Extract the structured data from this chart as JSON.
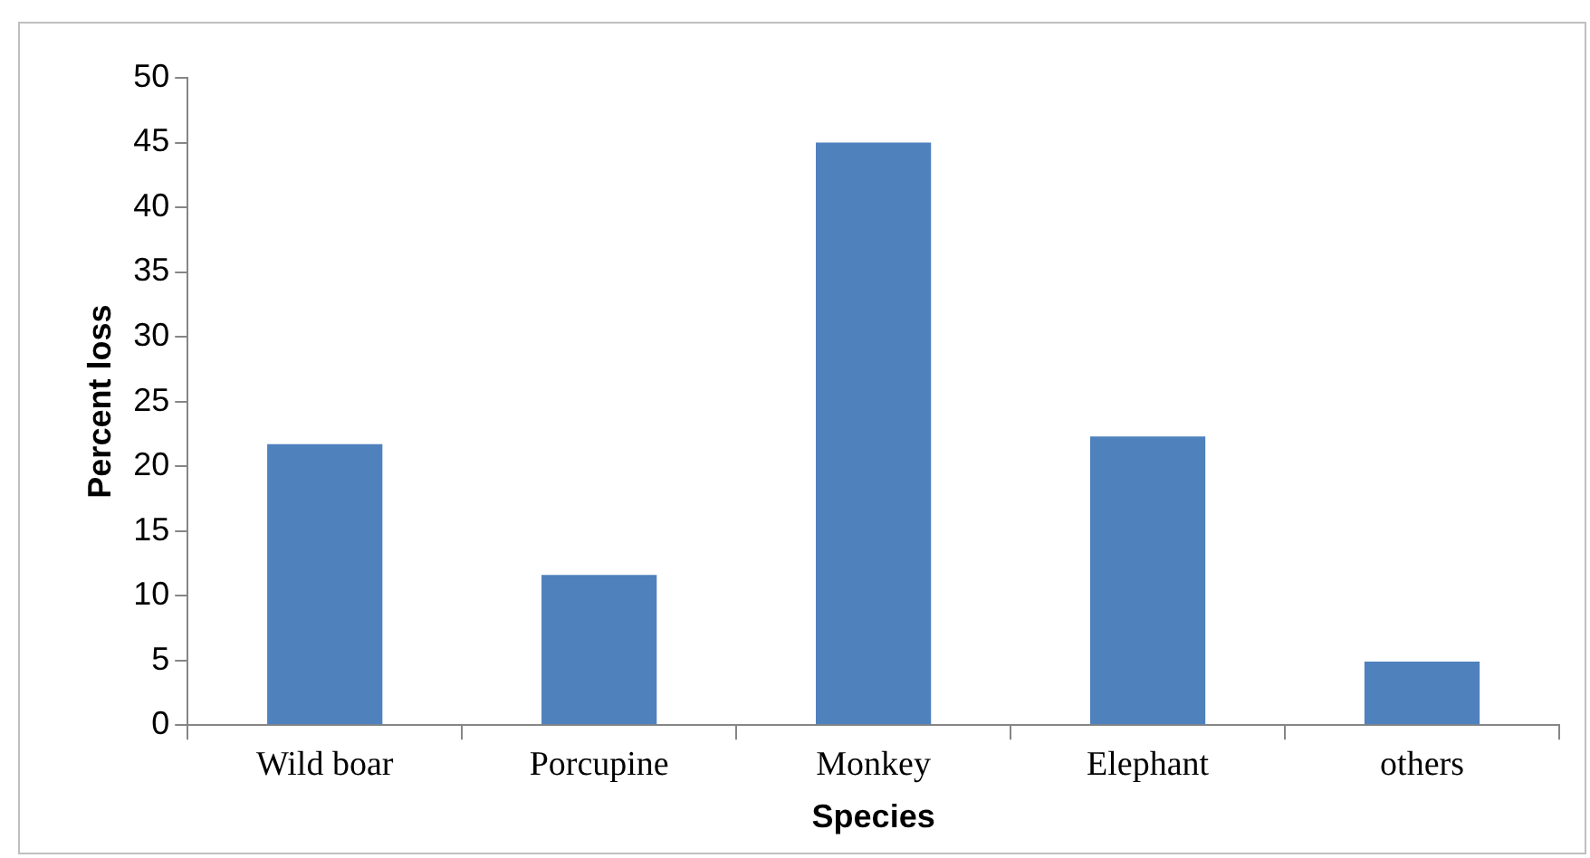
{
  "chart_data": {
    "type": "bar",
    "xlabel": "Species",
    "ylabel": "Percent loss",
    "categories": [
      "Wild boar",
      "Porcupine",
      "Monkey",
      "Elephant",
      "others"
    ],
    "values": [
      21.7,
      11.6,
      45,
      22.3,
      4.9
    ],
    "color": "#4f81bd",
    "ylim": [
      0,
      50
    ],
    "yticks": [
      0,
      5,
      10,
      15,
      20,
      25,
      30,
      35,
      40,
      45,
      50
    ],
    "grid": false,
    "legend": false
  }
}
